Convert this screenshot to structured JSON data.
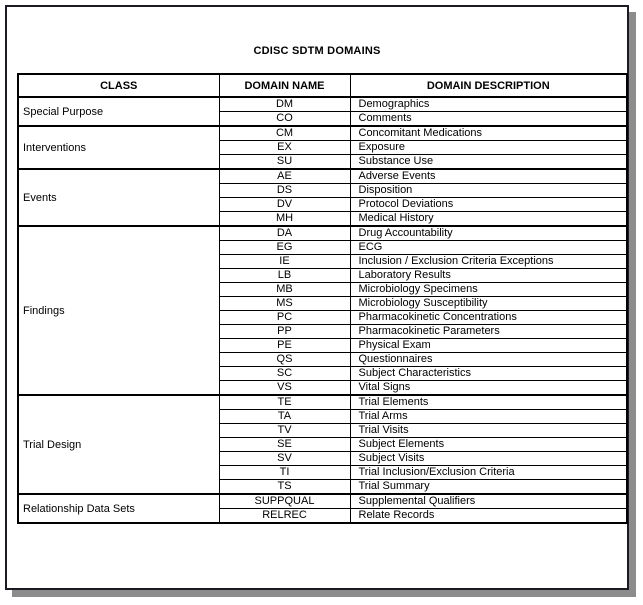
{
  "page": {
    "title": "CDISC SDTM DOMAINS"
  },
  "table": {
    "headers": [
      "CLASS",
      "DOMAIN NAME",
      "DOMAIN DESCRIPTION"
    ],
    "groups": [
      {
        "class": "Special Purpose",
        "domains": [
          {
            "name": "DM",
            "description": "Demographics"
          },
          {
            "name": "CO",
            "description": "Comments"
          }
        ]
      },
      {
        "class": "Interventions",
        "domains": [
          {
            "name": "CM",
            "description": "Concomitant Medications"
          },
          {
            "name": "EX",
            "description": "Exposure"
          },
          {
            "name": "SU",
            "description": "Substance Use"
          }
        ]
      },
      {
        "class": "Events",
        "domains": [
          {
            "name": "AE",
            "description": "Adverse Events"
          },
          {
            "name": "DS",
            "description": "Disposition"
          },
          {
            "name": "DV",
            "description": "Protocol Deviations"
          },
          {
            "name": "MH",
            "description": "Medical History"
          }
        ]
      },
      {
        "class": "Findings",
        "domains": [
          {
            "name": "DA",
            "description": "Drug Accountability"
          },
          {
            "name": "EG",
            "description": "ECG"
          },
          {
            "name": "IE",
            "description": "Inclusion / Exclusion Criteria Exceptions"
          },
          {
            "name": "LB",
            "description": "Laboratory Results"
          },
          {
            "name": "MB",
            "description": "Microbiology Specimens"
          },
          {
            "name": "MS",
            "description": "Microbiology Susceptibility"
          },
          {
            "name": "PC",
            "description": "Pharmacokinetic Concentrations"
          },
          {
            "name": "PP",
            "description": "Pharmacokinetic Parameters"
          },
          {
            "name": "PE",
            "description": "Physical Exam"
          },
          {
            "name": "QS",
            "description": "Questionnaires"
          },
          {
            "name": "SC",
            "description": "Subject Characteristics"
          },
          {
            "name": "VS",
            "description": "Vital Signs"
          }
        ]
      },
      {
        "class": "Trial Design",
        "domains": [
          {
            "name": "TE",
            "description": "Trial Elements"
          },
          {
            "name": "TA",
            "description": "Trial Arms"
          },
          {
            "name": "TV",
            "description": "Trial Visits"
          },
          {
            "name": "SE",
            "description": "Subject Elements"
          },
          {
            "name": "SV",
            "description": "Subject Visits"
          },
          {
            "name": "TI",
            "description": "Trial Inclusion/Exclusion Criteria"
          },
          {
            "name": "TS",
            "description": "Trial Summary"
          }
        ]
      },
      {
        "class": "Relationship Data Sets",
        "domains": [
          {
            "name": "SUPPQUAL",
            "description": "Supplemental Qualifiers"
          },
          {
            "name": "RELREC",
            "description": "Relate Records"
          }
        ]
      }
    ]
  },
  "colors": {
    "text": "#000000",
    "table_border": "#000000",
    "page_border": "#1b1b24",
    "page_shadow": "#8c8c8c",
    "page_bg": "#ffffff"
  }
}
